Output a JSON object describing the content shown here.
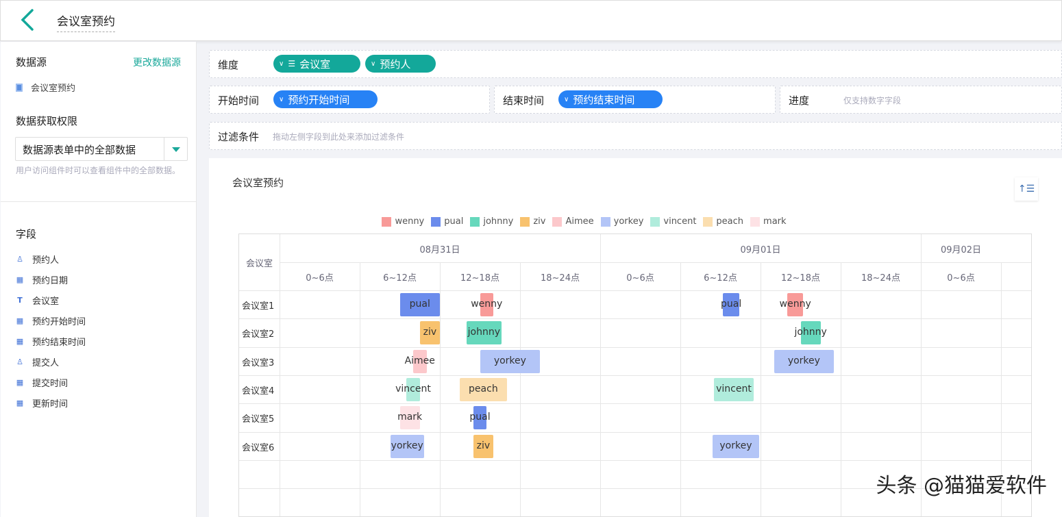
{
  "header": {
    "title": "会议室预约",
    "back_icon": "chevron-left-icon"
  },
  "sidebar": {
    "datasource_label": "数据源",
    "change_datasource": "更改数据源",
    "datasource_name": "会议室预约",
    "permission_label": "数据获取权限",
    "permission_value": "数据源表单中的全部数据",
    "permission_hint": "用户访问组件时可以查看组件中的全部数据。",
    "fields_label": "字段",
    "fields": [
      {
        "icon": "person-icon",
        "label": "预约人"
      },
      {
        "icon": "calendar-icon",
        "label": "预约日期"
      },
      {
        "icon": "text-icon",
        "label": "会议室"
      },
      {
        "icon": "calendar-icon",
        "label": "预约开始时间"
      },
      {
        "icon": "calendar-icon",
        "label": "预约结束时间"
      },
      {
        "icon": "person-icon",
        "label": "提交人"
      },
      {
        "icon": "calendar-icon",
        "label": "提交时间"
      },
      {
        "icon": "calendar-icon",
        "label": "更新时间"
      }
    ]
  },
  "config": {
    "dimension_label": "维度",
    "dimensions": [
      "会议室",
      "预约人"
    ],
    "start_label": "开始时间",
    "start_field": "预约开始时间",
    "end_label": "结束时间",
    "end_field": "预约结束时间",
    "progress_label": "进度",
    "progress_placeholder": "仅支持数字字段",
    "filter_label": "过滤条件",
    "filter_placeholder": "拖动左侧字段到此处来添加过滤条件"
  },
  "chart": {
    "title": "会议室预约",
    "row_header": "会议室",
    "sort_icon": "sort-ascending-icon"
  },
  "chart_data": {
    "type": "gantt",
    "dates": [
      "08月31日",
      "09月01日",
      "09月02日"
    ],
    "slots": [
      "0~6点",
      "6~12点",
      "12~18点",
      "18~24点"
    ],
    "rows": [
      "会议室1",
      "会议室2",
      "会议室3",
      "会议室4",
      "会议室5",
      "会议室6"
    ],
    "legend": [
      {
        "name": "wenny",
        "color": "#f89a98"
      },
      {
        "name": "pual",
        "color": "#6b8cec"
      },
      {
        "name": "johnny",
        "color": "#66d8bc"
      },
      {
        "name": "ziv",
        "color": "#f8c26e"
      },
      {
        "name": "Aimee",
        "color": "#fcc8cb"
      },
      {
        "name": "yorkey",
        "color": "#b3c5f7"
      },
      {
        "name": "vincent",
        "color": "#b0ecdc"
      },
      {
        "name": "peach",
        "color": "#fbdeaf"
      },
      {
        "name": "mark",
        "color": "#fde2e5"
      }
    ],
    "tasks": [
      {
        "row": "会议室1",
        "name": "pual",
        "date": "08月31日",
        "start": 9,
        "end": 12
      },
      {
        "row": "会议室1",
        "name": "wenny",
        "date": "08月31日",
        "start": 15,
        "end": 16
      },
      {
        "row": "会议室1",
        "name": "pual",
        "date": "09月01日",
        "start": 9.2,
        "end": 10.4
      },
      {
        "row": "会议室1",
        "name": "wenny",
        "date": "09月01日",
        "start": 14,
        "end": 15.2
      },
      {
        "row": "会议室2",
        "name": "ziv",
        "date": "08月31日",
        "start": 10.5,
        "end": 12
      },
      {
        "row": "会议室2",
        "name": "johnny",
        "date": "08月31日",
        "start": 14,
        "end": 16.6
      },
      {
        "row": "会议室2",
        "name": "johnny",
        "date": "09月01日",
        "start": 15,
        "end": 16.5
      },
      {
        "row": "会议室3",
        "name": "Aimee",
        "date": "08月31日",
        "start": 10,
        "end": 11
      },
      {
        "row": "会议室3",
        "name": "yorkey",
        "date": "08月31日",
        "start": 15,
        "end": 19.5
      },
      {
        "row": "会议室3",
        "name": "yorkey",
        "date": "09月01日",
        "start": 13,
        "end": 17.5
      },
      {
        "row": "会议室4",
        "name": "vincent",
        "date": "08月31日",
        "start": 9.5,
        "end": 10.5
      },
      {
        "row": "会议室4",
        "name": "peach",
        "date": "08月31日",
        "start": 13.5,
        "end": 17
      },
      {
        "row": "会议室4",
        "name": "vincent",
        "date": "09月01日",
        "start": 8.5,
        "end": 11.5
      },
      {
        "row": "会议室5",
        "name": "mark",
        "date": "08月31日",
        "start": 9,
        "end": 10.5
      },
      {
        "row": "会议室5",
        "name": "pual",
        "date": "08月31日",
        "start": 14.5,
        "end": 15.5
      },
      {
        "row": "会议室6",
        "name": "yorkey",
        "date": "08月31日",
        "start": 8.3,
        "end": 10.8
      },
      {
        "row": "会议室6",
        "name": "ziv",
        "date": "08月31日",
        "start": 14.5,
        "end": 16
      },
      {
        "row": "会议室6",
        "name": "yorkey",
        "date": "09月01日",
        "start": 8.4,
        "end": 11.9
      }
    ]
  },
  "watermark": "头条 @猫猫爱软件"
}
